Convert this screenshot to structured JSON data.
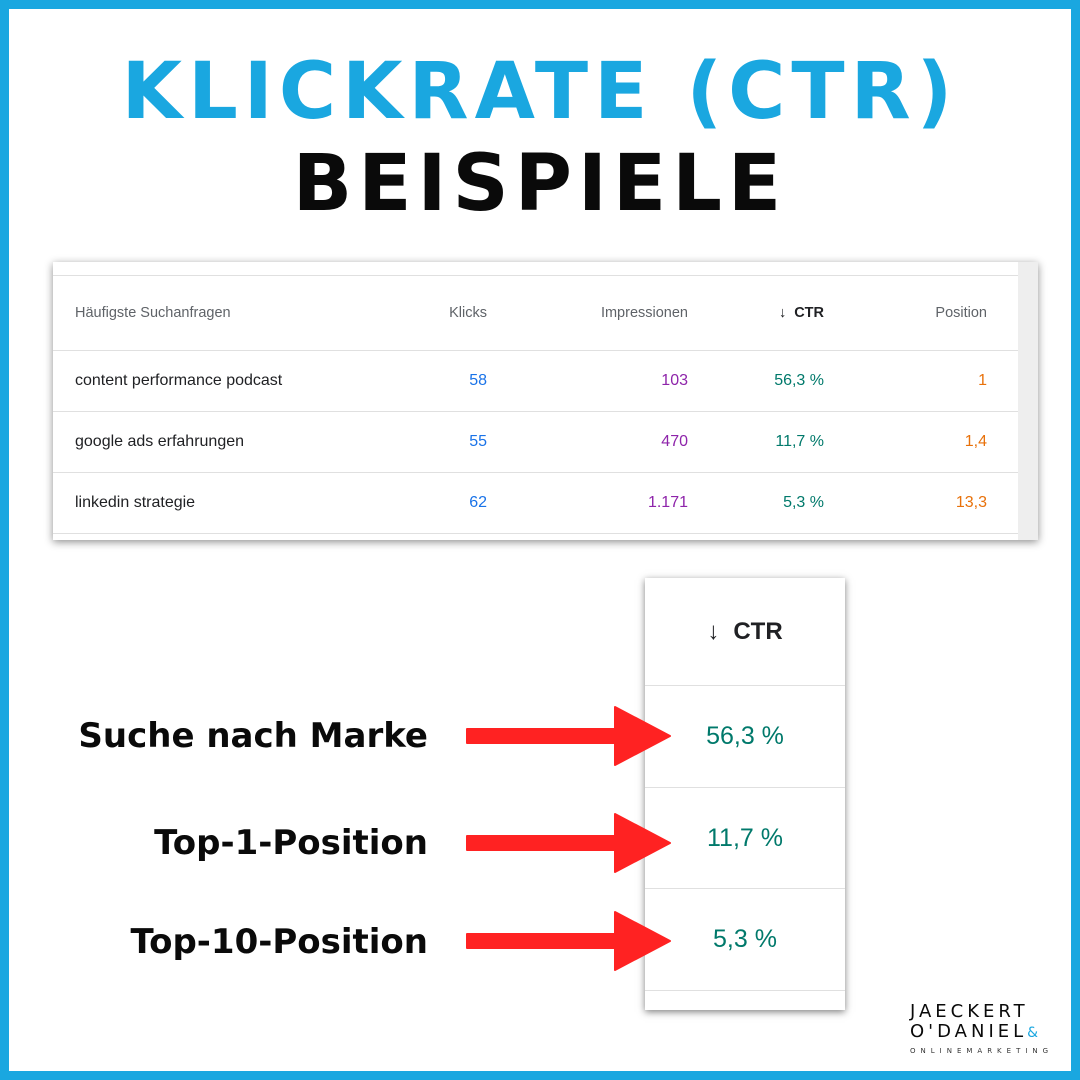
{
  "title": {
    "line1": "KLICKRATE (CTR)",
    "line2": "BEISPIELE"
  },
  "table": {
    "headers": {
      "query": "Häufigste Suchanfragen",
      "clicks": "Klicks",
      "impressions": "Impressionen",
      "ctr": "CTR",
      "position": "Position"
    },
    "sort_indicator": "↓",
    "rows": [
      {
        "query": "content performance podcast",
        "clicks": "58",
        "impressions": "103",
        "ctr": "56,3 %",
        "position": "1"
      },
      {
        "query": "google ads erfahrungen",
        "clicks": "55",
        "impressions": "470",
        "ctr": "11,7 %",
        "position": "1,4"
      },
      {
        "query": "linkedin strategie",
        "clicks": "62",
        "impressions": "1.171",
        "ctr": "5,3 %",
        "position": "13,3"
      }
    ]
  },
  "zoom": {
    "header": "CTR",
    "values": [
      "56,3 %",
      "11,7 %",
      "5,3 %"
    ]
  },
  "labels": [
    "Suche nach Marke",
    "Top-1-Position",
    "Top-10-Position"
  ],
  "logo": {
    "line1": "JAECKERT",
    "line2": "O'DANIEL",
    "line3": "ONLINEMARKETING"
  },
  "colors": {
    "accent": "#1aa7e0",
    "arrow": "#ff2222",
    "clicks": "#1a73e8",
    "impressions": "#8e24aa",
    "ctr": "#00796b",
    "position": "#e8710a"
  }
}
